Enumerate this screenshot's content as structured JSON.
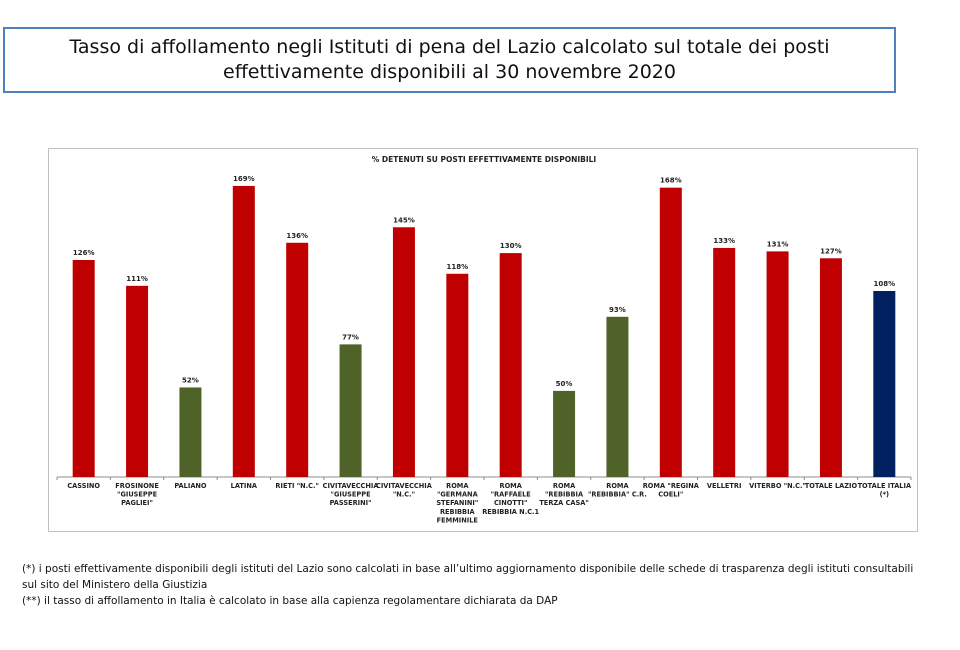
{
  "page": {
    "title_line1": "Tasso di affollamento negli Istituti di pena del Lazio calcolato sul totale dei posti",
    "title_line2": "effettivamente disponibili al 30 novembre 2020"
  },
  "notes": [
    "(*) i posti effettivamente disponibili  degli istituti del Lazio sono calcolati in base all’ultimo aggiornamento disponibile delle schede di trasparenza degli istituti consultabili sul sito del Ministero della Giustizia",
    "(**) il tasso di affollamento  in Italia è calcolato in base alla capienza regolamentare dichiarata da DAP"
  ],
  "colors": {
    "red": "#c00000",
    "green": "#4f6228",
    "navy": "#002060"
  },
  "chart_data": {
    "type": "bar",
    "title": "% DETENUTI SU POSTI EFFETTIVAMENTE DISPONIBILI",
    "xlabel": "",
    "ylabel": "",
    "ylim": [
      0,
      180
    ],
    "grid": false,
    "legend": "none",
    "categories": [
      [
        "CASSINO"
      ],
      [
        "FROSINONE",
        "\"GIUSEPPE",
        "PAGLIEI\""
      ],
      [
        "PALIANO"
      ],
      [
        "LATINA"
      ],
      [
        "RIETI \"N.C.\""
      ],
      [
        "CIVITAVECCHIA",
        "\"GIUSEPPE",
        "PASSERINI\""
      ],
      [
        "CIVITAVECCHIA",
        "\"N.C.\""
      ],
      [
        "ROMA",
        "\"GERMANA",
        "STEFANINI\"",
        "REBIBBIA",
        "FEMMINILE"
      ],
      [
        "ROMA",
        "\"RAFFAELE",
        "CINOTTI\"",
        "REBIBBIA N.C.1"
      ],
      [
        "ROMA",
        "\"REBIBBIA",
        "TERZA CASA\""
      ],
      [
        "ROMA",
        "\"REBIBBIA\" C.R."
      ],
      [
        "ROMA \"REGINA",
        "COELI\""
      ],
      [
        "VELLETRI"
      ],
      [
        "VITERBO \"N.C.\""
      ],
      [
        "TOTALE LAZIO"
      ],
      [
        "TOTALE ITALIA",
        "(*)"
      ]
    ],
    "values": [
      126,
      111,
      52,
      169,
      136,
      77,
      145,
      118,
      130,
      50,
      93,
      168,
      133,
      131,
      127,
      108
    ],
    "labels": [
      "126%",
      "111%",
      "52%",
      "169%",
      "136%",
      "77%",
      "145%",
      "118%",
      "130%",
      "50%",
      "93%",
      "168%",
      "133%",
      "131%",
      "127%",
      "108%"
    ],
    "bar_colors": [
      "red",
      "red",
      "green",
      "red",
      "red",
      "green",
      "red",
      "red",
      "red",
      "green",
      "green",
      "red",
      "red",
      "red",
      "red",
      "navy"
    ]
  }
}
